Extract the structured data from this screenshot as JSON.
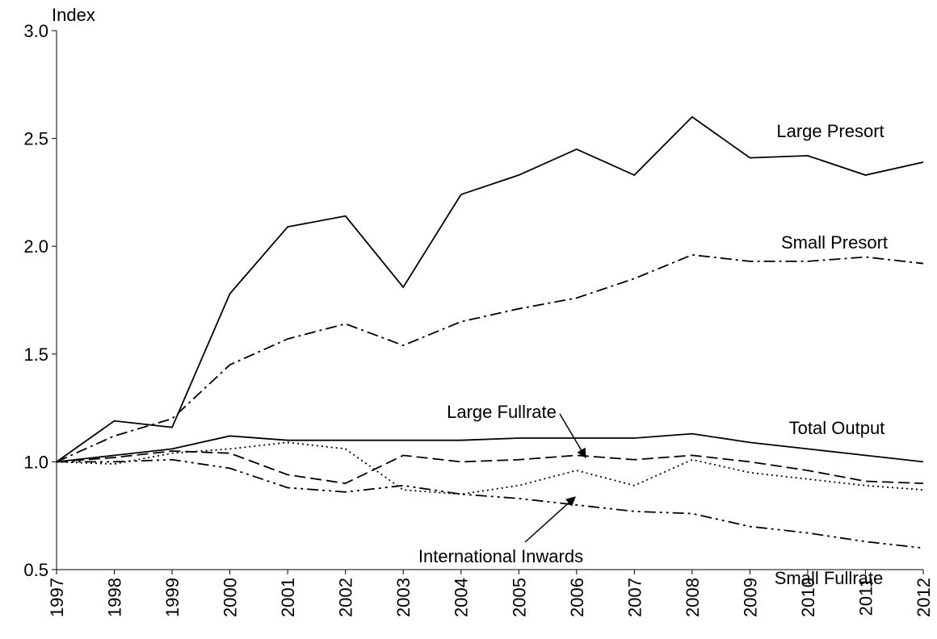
{
  "chart_data": {
    "type": "line",
    "y_label": "Index",
    "categories": [
      "1997",
      "1998",
      "1999",
      "2000",
      "2001",
      "2002",
      "2003",
      "2004",
      "2005",
      "2006",
      "2007",
      "2008",
      "2009",
      "2010",
      "2011",
      "2012"
    ],
    "ylim": [
      0.5,
      3
    ],
    "yticks": [
      0.5,
      {
        "value": 1,
        "label": "1.0"
      },
      1.5,
      {
        "value": 2,
        "label": "2.0"
      },
      2.5,
      {
        "value": 3,
        "label": "3.0"
      }
    ],
    "series": [
      {
        "name": "Large Presort",
        "color": "#000000",
        "dash": "none",
        "values": [
          1.0,
          1.19,
          1.16,
          1.78,
          2.09,
          2.14,
          1.81,
          2.24,
          2.33,
          2.45,
          2.33,
          2.6,
          2.41,
          2.42,
          2.33,
          2.39
        ]
      },
      {
        "name": "Small Presort",
        "color": "#000000",
        "dash": "14 5 3 5",
        "values": [
          1.0,
          1.12,
          1.2,
          1.45,
          1.57,
          1.64,
          1.54,
          1.65,
          1.71,
          1.76,
          1.85,
          1.96,
          1.93,
          1.93,
          1.95,
          1.92
        ]
      },
      {
        "name": "Total Output",
        "color": "#000000",
        "dash": "none",
        "values": [
          1.0,
          1.03,
          1.06,
          1.12,
          1.1,
          1.1,
          1.1,
          1.1,
          1.11,
          1.11,
          1.11,
          1.13,
          1.09,
          1.06,
          1.03,
          1.0
        ]
      },
      {
        "name": "Large Fullrate",
        "color": "#000000",
        "dash": "14 6",
        "values": [
          1.0,
          1.02,
          1.05,
          1.04,
          0.94,
          0.9,
          1.03,
          1.0,
          1.01,
          1.03,
          1.01,
          1.03,
          1.0,
          0.96,
          0.91,
          0.9
        ]
      },
      {
        "name": "International Inwards",
        "color": "#000000",
        "dash": "2 4",
        "values": [
          1.0,
          0.99,
          1.04,
          1.06,
          1.09,
          1.06,
          0.87,
          0.85,
          0.89,
          0.96,
          0.89,
          1.01,
          0.95,
          0.92,
          0.89,
          0.87
        ]
      },
      {
        "name": "Small Fullrate",
        "color": "#000000",
        "dash": "14 5 3 5 3 5",
        "values": [
          1.0,
          1.0,
          1.01,
          0.97,
          0.88,
          0.86,
          0.89,
          0.85,
          0.83,
          0.8,
          0.77,
          0.76,
          0.7,
          0.67,
          0.63,
          0.6
        ]
      }
    ]
  }
}
